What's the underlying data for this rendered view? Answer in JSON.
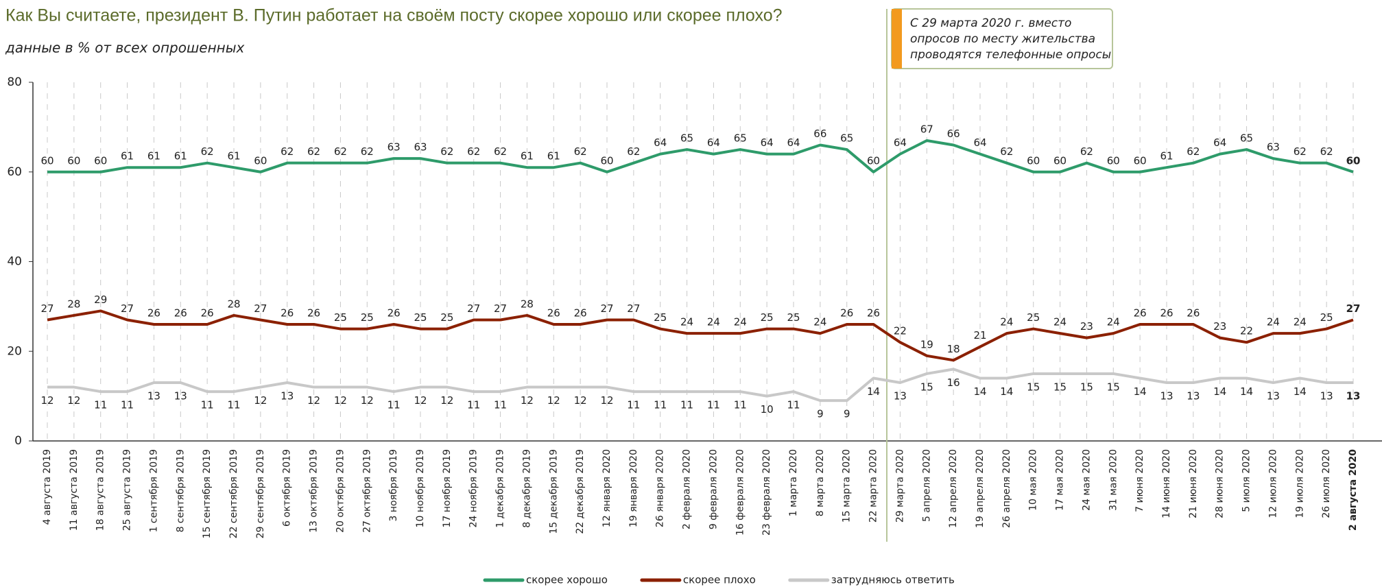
{
  "chart_data": {
    "type": "line",
    "title": "Как Вы считаете, президент В. Путин работает на своём посту скорее хорошо или скорее плохо?",
    "subtitle": "данные в % от всех опрошенных",
    "annotation": [
      "С 29 марта 2020 г. вместо",
      "опросов по месту жительства",
      "проводятся телефонные опросы"
    ],
    "categories": [
      "4 августа 2019",
      "11 августа 2019",
      "18 августа 2019",
      "25 августа 2019",
      "1 сентября 2019",
      "8 сентября 2019",
      "15 сентября 2019",
      "22 сентября 2019",
      "29 сентября 2019",
      "6 октября 2019",
      "13 октября 2019",
      "20 октября 2019",
      "27 октября 2019",
      "3 ноября 2019",
      "10 ноября 2019",
      "17 ноября 2019",
      "24 ноября 2019",
      "1 декабря 2019",
      "8 декабря 2019",
      "15 декабря 2019",
      "22 декабря 2019",
      "12 января 2020",
      "19 января 2020",
      "26 января 2020",
      "2 февраля 2020",
      "9 февраля 2020",
      "16 февраля 2020",
      "23 февраля 2020",
      "1 марта 2020",
      "8 марта 2020",
      "15 марта 2020",
      "22 марта 2020",
      "29 марта 2020",
      "5 апреля 2020",
      "12 апреля 2020",
      "19 апреля 2020",
      "26 апреля 2020",
      "10 мая 2020",
      "17 мая 2020",
      "24 мая 2020",
      "31 мая 2020",
      "7 июня 2020",
      "14 июня 2020",
      "21 июня 2020",
      "28 июня 2020",
      "5 июля 2020",
      "12 июля 2020",
      "19 июля 2020",
      "26 июля 2020",
      "2 августа 2020"
    ],
    "series": [
      {
        "name": "скорее хорошо",
        "color": "#2e9b6a",
        "values": [
          60,
          60,
          60,
          61,
          61,
          61,
          62,
          61,
          60,
          62,
          62,
          62,
          62,
          63,
          63,
          62,
          62,
          62,
          61,
          61,
          62,
          60,
          62,
          64,
          65,
          64,
          65,
          64,
          64,
          66,
          65,
          60,
          64,
          67,
          66,
          64,
          62,
          60,
          60,
          62,
          60,
          60,
          61,
          62,
          64,
          65,
          63,
          62,
          62,
          60
        ]
      },
      {
        "name": "скорее плохо",
        "color": "#8b2000",
        "values": [
          27,
          28,
          29,
          27,
          26,
          26,
          26,
          28,
          27,
          26,
          26,
          25,
          25,
          26,
          25,
          25,
          27,
          27,
          28,
          26,
          26,
          27,
          27,
          25,
          24,
          24,
          24,
          25,
          25,
          24,
          26,
          26,
          22,
          19,
          18,
          21,
          24,
          25,
          24,
          23,
          24,
          26,
          26,
          26,
          23,
          22,
          24,
          24,
          25,
          27
        ]
      },
      {
        "name": "затрудняюсь ответить",
        "color": "#c8c8c8",
        "values": [
          12,
          12,
          11,
          11,
          13,
          13,
          11,
          11,
          12,
          13,
          12,
          12,
          12,
          11,
          12,
          12,
          11,
          11,
          12,
          12,
          12,
          12,
          11,
          11,
          11,
          11,
          11,
          10,
          11,
          9,
          9,
          14,
          13,
          15,
          16,
          14,
          14,
          15,
          15,
          15,
          15,
          14,
          13,
          13,
          14,
          14,
          13,
          14,
          13,
          13
        ]
      }
    ],
    "ylim": [
      0,
      80
    ],
    "yticks": [
      0,
      20,
      40,
      60,
      80
    ],
    "legend": "bottom"
  }
}
